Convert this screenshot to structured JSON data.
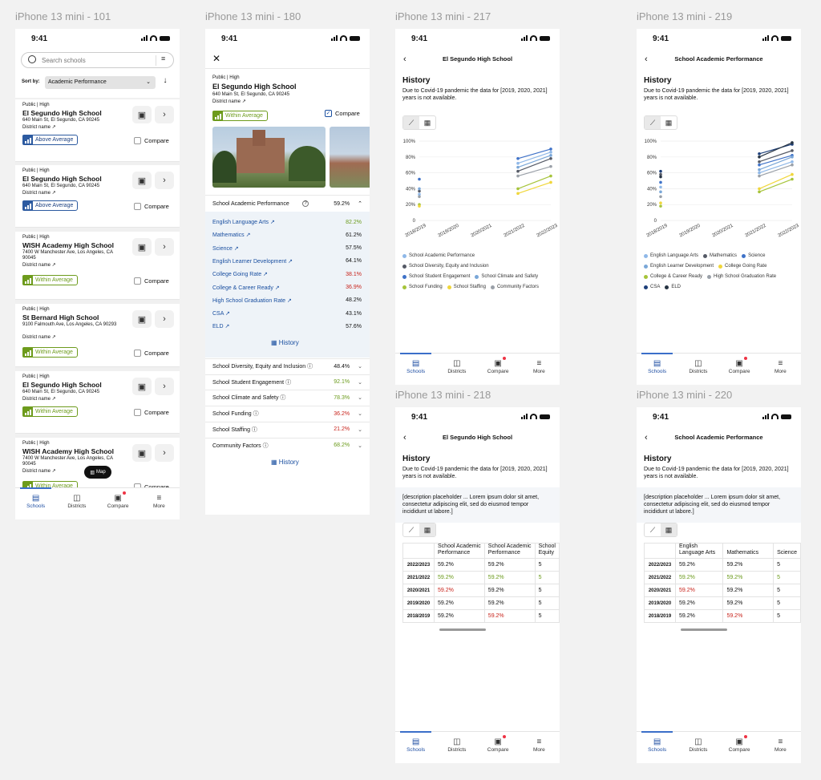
{
  "frames": {
    "f101": "iPhone 13 mini - 101",
    "f180": "iPhone 13 mini - 180",
    "f217": "iPhone 13 mini - 217",
    "f219": "iPhone 13 mini - 219",
    "f218": "iPhone 13 mini - 218",
    "f220": "iPhone 13 mini - 220"
  },
  "status_time": "9:41",
  "tabs": [
    "Schools",
    "Districts",
    "Compare",
    "More"
  ],
  "list": {
    "search_placeholder": "Search schools",
    "sort_label": "Sort by:",
    "sort_value": "Academic Performance",
    "compare_label": "Compare",
    "map_label": "Map",
    "district_label": "District name",
    "schools": [
      {
        "type": "Public",
        "level": "High",
        "name": "El Segundo High School",
        "address": "640 Main St, El Segundo, CA 90245",
        "rating": "Above Average"
      },
      {
        "type": "Public",
        "level": "High",
        "name": "El Segundo High School",
        "address": "640 Main St, El Segundo, CA 90245",
        "rating": "Above Average"
      },
      {
        "type": "Public",
        "level": "High",
        "name": "WISH Academy High School",
        "address": "7400 W Manchester Ave, Los Angeles, CA 90045",
        "rating": "Within Average"
      },
      {
        "type": "Public",
        "level": "High",
        "name": "St Bernard High School",
        "address": "9100 Falmouth Ave, Los Angeles, CA 90293",
        "rating": "Within Average"
      },
      {
        "type": "Public",
        "level": "High",
        "name": "El Segundo High School",
        "address": "640 Main St, El Segundo, CA 90245",
        "rating": "Within Average"
      },
      {
        "type": "Public",
        "level": "High",
        "name": "WISH Academy High School",
        "address": "7400 W Manchester Ave, Los Angeles, CA 90045",
        "rating": "Within Average"
      }
    ]
  },
  "detail": {
    "type": "Public",
    "level": "High",
    "name": "El Segundo High School",
    "address": "640 Main St, El Segundo, CA 90245",
    "district": "District name",
    "compare": "Compare",
    "rating": "Within Average",
    "academic": {
      "label": "School Academic Performance",
      "value": "59.2%"
    },
    "metrics": [
      {
        "name": "English Language Arts",
        "value": "82.2%",
        "tone": "g"
      },
      {
        "name": "Mathematics",
        "value": "61.2%",
        "tone": "n"
      },
      {
        "name": "Science",
        "value": "57.5%",
        "tone": "n"
      },
      {
        "name": "English Learner Development",
        "value": "64.1%",
        "tone": "n"
      },
      {
        "name": "College Going Rate",
        "value": "38.1%",
        "tone": "r"
      },
      {
        "name": "College & Career Ready",
        "value": "36.9%",
        "tone": "r"
      },
      {
        "name": "High School Graduation Rate",
        "value": "48.2%",
        "tone": "n"
      },
      {
        "name": "CSA",
        "value": "43.1%",
        "tone": "n"
      },
      {
        "name": "ELD",
        "value": "57.6%",
        "tone": "n"
      }
    ],
    "history": "History",
    "sections": [
      {
        "name": "School Diversity, Equity and Inclusion",
        "value": "48.4%",
        "tone": "n"
      },
      {
        "name": "School Student Engagement",
        "value": "92.1%",
        "tone": "g"
      },
      {
        "name": "School Climate and Safety",
        "value": "78.3%",
        "tone": "g"
      },
      {
        "name": "School Funding",
        "value": "36.2%",
        "tone": "r"
      },
      {
        "name": "School Staffing",
        "value": "21.2%",
        "tone": "r"
      },
      {
        "name": "Community Factors",
        "value": "68.2%",
        "tone": "g"
      }
    ]
  },
  "history": {
    "title": "History",
    "note": "Due to Covid-19 pandemic the data for [2019, 2020, 2021] years is not available.",
    "placeholder": "[description placeholder ... Lorem ipsum dolor sit amet, consectetur adipiscing elit, sed do eiusmod tempor incididunt ut labore.]",
    "header_school": "El Segundo High School",
    "header_academic": "School Academic Performance"
  },
  "chart_data": [
    {
      "type": "line",
      "title": "",
      "categories": [
        "2018/2019",
        "2019/2020",
        "2020/2021",
        "2021/2022",
        "2022/2023"
      ],
      "ylim": [
        0,
        100
      ],
      "yticks": [
        "100%",
        "80%",
        "60%",
        "40%",
        "20%",
        "0"
      ],
      "series": [
        {
          "name": "School Academic Performance",
          "color": "#8fb8e8",
          "values": [
            33,
            null,
            null,
            72,
            86
          ]
        },
        {
          "name": "School Diversity, Equity and Inclusion",
          "color": "#555a66",
          "values": [
            37,
            null,
            null,
            62,
            78
          ]
        },
        {
          "name": "School Student Engagement",
          "color": "#3f72c8",
          "values": [
            52,
            null,
            null,
            78,
            90
          ]
        },
        {
          "name": "School Climate and Safety",
          "color": "#7aa7d8",
          "values": [
            40,
            null,
            null,
            67,
            82
          ]
        },
        {
          "name": "School Funding",
          "color": "#a6c43a",
          "values": [
            20,
            null,
            null,
            40,
            56
          ]
        },
        {
          "name": "School Staffing",
          "color": "#f0d63a",
          "values": [
            18,
            null,
            null,
            34,
            48
          ]
        },
        {
          "name": "Community Factors",
          "color": "#9aa0a8",
          "values": [
            30,
            null,
            null,
            56,
            68
          ]
        }
      ]
    },
    {
      "type": "line",
      "title": "",
      "categories": [
        "2018/2019",
        "2019/2020",
        "2020/2021",
        "2021/2022",
        "2022/2023"
      ],
      "ylim": [
        0,
        100
      ],
      "yticks": [
        "100%",
        "80%",
        "60%",
        "40%",
        "20%",
        "0"
      ],
      "series": [
        {
          "name": "English Language Arts",
          "color": "#8fb8e8",
          "values": [
            42,
            null,
            null,
            60,
            74
          ]
        },
        {
          "name": "Mathematics",
          "color": "#555a66",
          "values": [
            58,
            null,
            null,
            74,
            88
          ]
        },
        {
          "name": "Science",
          "color": "#3f72c8",
          "values": [
            48,
            null,
            null,
            70,
            82
          ]
        },
        {
          "name": "English Learner Development",
          "color": "#7aa7d8",
          "values": [
            36,
            null,
            null,
            64,
            80
          ]
        },
        {
          "name": "College Going Rate",
          "color": "#f0d63a",
          "values": [
            22,
            null,
            null,
            40,
            58
          ]
        },
        {
          "name": "College & Career Ready",
          "color": "#a6c43a",
          "values": [
            18,
            null,
            null,
            36,
            52
          ]
        },
        {
          "name": "High School Graduation Rate",
          "color": "#9aa0a8",
          "values": [
            30,
            null,
            null,
            56,
            70
          ]
        },
        {
          "name": "CSA",
          "color": "#1d3f7a",
          "values": [
            62,
            null,
            null,
            84,
            96
          ]
        },
        {
          "name": "ELD",
          "color": "#263342",
          "values": [
            55,
            null,
            null,
            80,
            98
          ]
        }
      ]
    }
  ],
  "table218": {
    "columns": [
      "School Academic Performance",
      "School Academic Performance",
      "School Equity"
    ],
    "col3_visible": "S E",
    "rows": [
      {
        "year": "2022/2023",
        "v": [
          "59.2%",
          "59.2%",
          "5"
        ],
        "t": [
          "n",
          "n",
          "n"
        ]
      },
      {
        "year": "2021/2022",
        "v": [
          "59.2%",
          "59.2%",
          "5"
        ],
        "t": [
          "g",
          "g",
          "g"
        ]
      },
      {
        "year": "2020/2021",
        "v": [
          "59.2%",
          "59.2%",
          "5"
        ],
        "t": [
          "r",
          "n",
          "n"
        ]
      },
      {
        "year": "2019/2020",
        "v": [
          "59.2%",
          "59.2%",
          "5"
        ],
        "t": [
          "n",
          "n",
          "n"
        ]
      },
      {
        "year": "2018/2019",
        "v": [
          "59.2%",
          "59.2%",
          "5"
        ],
        "t": [
          "n",
          "r",
          "n"
        ]
      }
    ]
  },
  "table220": {
    "columns": [
      "English Language Arts",
      "Mathematics",
      "Science"
    ],
    "rows": [
      {
        "year": "2022/2023",
        "v": [
          "59.2%",
          "59.2%",
          "5"
        ],
        "t": [
          "n",
          "n",
          "n"
        ]
      },
      {
        "year": "2021/2022",
        "v": [
          "59.2%",
          "59.2%",
          "5"
        ],
        "t": [
          "g",
          "g",
          "g"
        ]
      },
      {
        "year": "2020/2021",
        "v": [
          "59.2%",
          "59.2%",
          "5"
        ],
        "t": [
          "r",
          "n",
          "n"
        ]
      },
      {
        "year": "2019/2020",
        "v": [
          "59.2%",
          "59.2%",
          "5"
        ],
        "t": [
          "n",
          "n",
          "n"
        ]
      },
      {
        "year": "2018/2019",
        "v": [
          "59.2%",
          "59.2%",
          "5"
        ],
        "t": [
          "n",
          "r",
          "n"
        ]
      }
    ]
  },
  "colors": {
    "blue": "#1a4fa0",
    "above": "#2c5aa0",
    "within": "#6d9b1c",
    "red": "#c8231b"
  }
}
